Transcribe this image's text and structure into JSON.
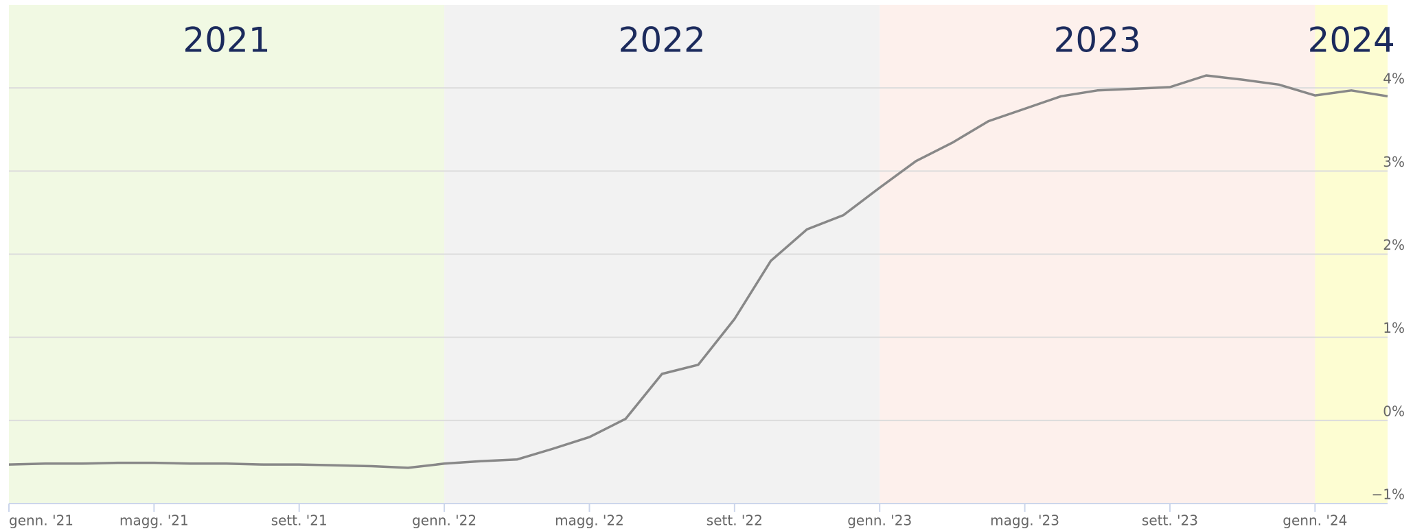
{
  "chart_data": {
    "type": "line",
    "x": [
      "2021-01",
      "2021-02",
      "2021-03",
      "2021-04",
      "2021-05",
      "2021-06",
      "2021-07",
      "2021-08",
      "2021-09",
      "2021-10",
      "2021-11",
      "2021-12",
      "2022-01",
      "2022-02",
      "2022-03",
      "2022-04",
      "2022-05",
      "2022-06",
      "2022-07",
      "2022-08",
      "2022-09",
      "2022-10",
      "2022-11",
      "2022-12",
      "2023-01",
      "2023-02",
      "2023-03",
      "2023-04",
      "2023-05",
      "2023-06",
      "2023-07",
      "2023-08",
      "2023-09",
      "2023-10",
      "2023-11",
      "2023-12",
      "2024-01",
      "2024-02",
      "2024-03"
    ],
    "series": [
      {
        "color": "#888888",
        "values": [
          -0.53,
          -0.52,
          -0.52,
          -0.51,
          -0.51,
          -0.52,
          -0.52,
          -0.53,
          -0.53,
          -0.54,
          -0.55,
          -0.57,
          -0.52,
          -0.49,
          -0.47,
          -0.34,
          -0.2,
          0.02,
          0.56,
          0.67,
          1.22,
          1.92,
          2.3,
          2.47,
          2.8,
          3.12,
          3.34,
          3.6,
          3.75,
          3.9,
          3.97,
          3.99,
          4.01,
          4.15,
          4.1,
          4.04,
          3.91,
          3.97,
          3.9
        ]
      }
    ],
    "xlim": [
      "2021-01",
      "2024-03"
    ],
    "xticks": [
      {
        "value": "2021-01",
        "label": "genn. '21"
      },
      {
        "value": "2021-05",
        "label": "magg. '21"
      },
      {
        "value": "2021-09",
        "label": "sett. '21"
      },
      {
        "value": "2022-01",
        "label": "genn. '22"
      },
      {
        "value": "2022-05",
        "label": "magg. '22"
      },
      {
        "value": "2022-09",
        "label": "sett. '22"
      },
      {
        "value": "2023-01",
        "label": "genn. '23"
      },
      {
        "value": "2023-05",
        "label": "magg. '23"
      },
      {
        "value": "2023-09",
        "label": "sett. '23"
      },
      {
        "value": "2024-01",
        "label": "genn. '24"
      }
    ],
    "ylim": [
      -1,
      5
    ],
    "yticks": [
      {
        "value": -1,
        "label": "−1%"
      },
      {
        "value": 0,
        "label": "0%"
      },
      {
        "value": 1,
        "label": "1%"
      },
      {
        "value": 2,
        "label": "2%"
      },
      {
        "value": 3,
        "label": "3%"
      },
      {
        "value": 4,
        "label": "4%"
      }
    ],
    "grid": true,
    "bands": [
      {
        "label": "2021",
        "from": "2021-01",
        "to": "2022-01",
        "color": "#f1f9e3"
      },
      {
        "label": "2022",
        "from": "2022-01",
        "to": "2023-01",
        "color": "#f2f2f2"
      },
      {
        "label": "2023",
        "from": "2023-01",
        "to": "2024-01",
        "color": "#fdf0ec"
      },
      {
        "label": "2024",
        "from": "2024-01",
        "to": "2024-03",
        "color": "#fdfdd2"
      }
    ]
  }
}
